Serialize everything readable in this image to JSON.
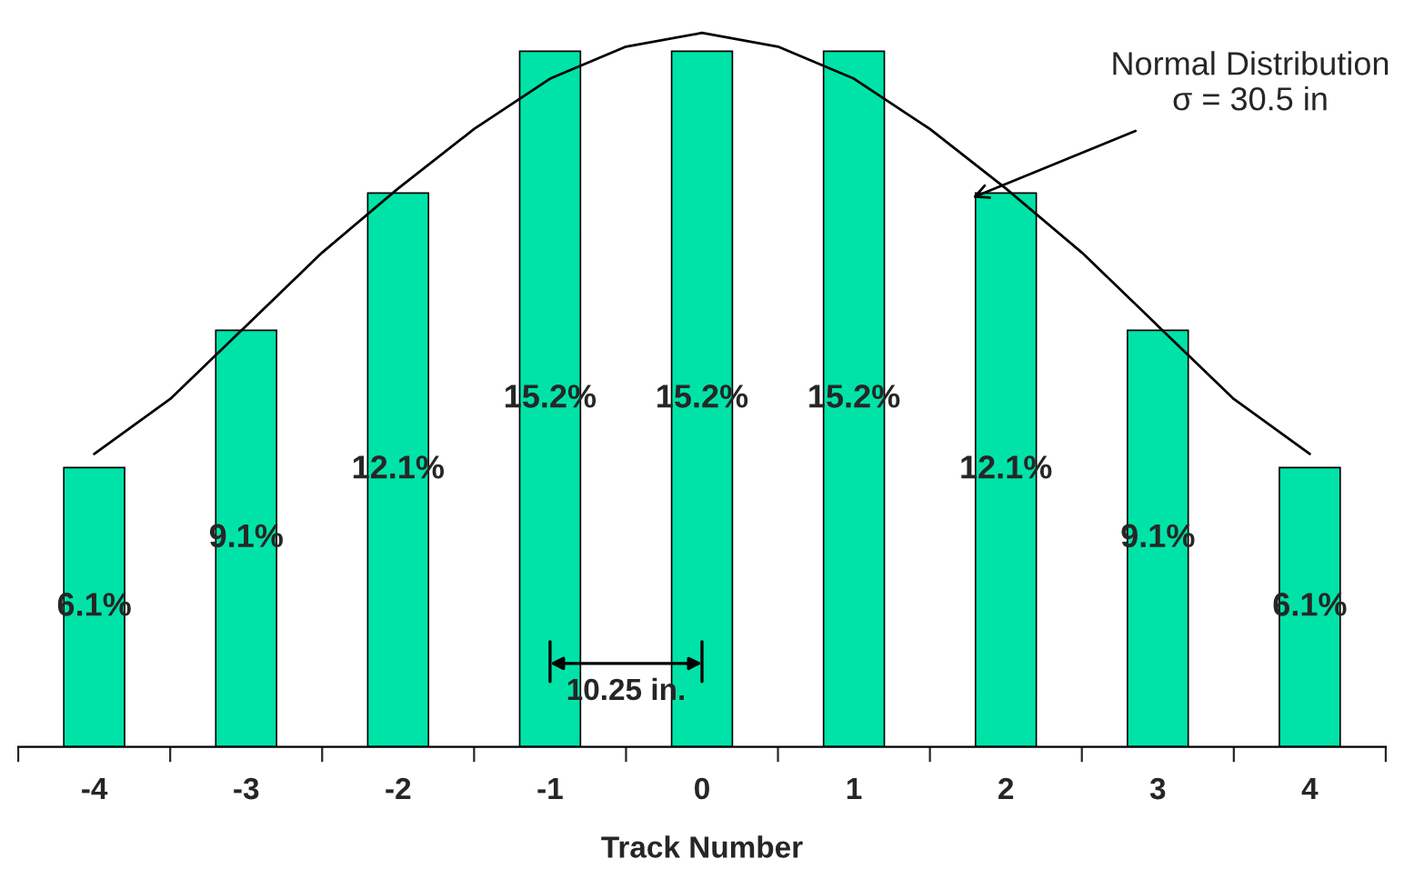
{
  "chart_data": {
    "type": "bar",
    "xlabel": "Track Number",
    "x": [
      -4,
      -3,
      -2,
      -1,
      0,
      1,
      2,
      3,
      4
    ],
    "xlim": [
      -4.5,
      4.5
    ],
    "xticks": [
      -4,
      -3,
      -2,
      -1,
      0,
      1,
      2,
      3,
      4
    ],
    "tick_labels": "x",
    "color": "#00e3a8",
    "series": [
      {
        "values": [
          6.1,
          9.1,
          12.1,
          15.2,
          15.2,
          15.2,
          12.1,
          9.1,
          6.1
        ],
        "value_labels": [
          "6.1%",
          "9.1%",
          "12.1%",
          "15.2%",
          "15.2%",
          "15.2%",
          "12.1%",
          "9.1%",
          "6.1%"
        ]
      },
      {
        "type": "line",
        "color": "#000000",
        "x": [
          -4,
          -3.5,
          -3,
          -2.5,
          -2,
          -1.5,
          -1,
          -0.5,
          0,
          0.5,
          1,
          1.5,
          2,
          2.5,
          3,
          3.5,
          4
        ],
        "values": [
          6.4,
          7.6,
          9.2,
          10.8,
          12.2,
          13.5,
          14.6,
          15.3,
          15.6,
          15.3,
          14.6,
          13.5,
          12.2,
          10.8,
          9.2,
          7.6,
          6.4
        ]
      }
    ],
    "annotations": [
      {
        "text": "Normal Distribution\nσ = 30.5 in",
        "x": 1.78,
        "y": 12.0
      },
      "10.25 in."
    ],
    "grid": false,
    "legend": false
  }
}
